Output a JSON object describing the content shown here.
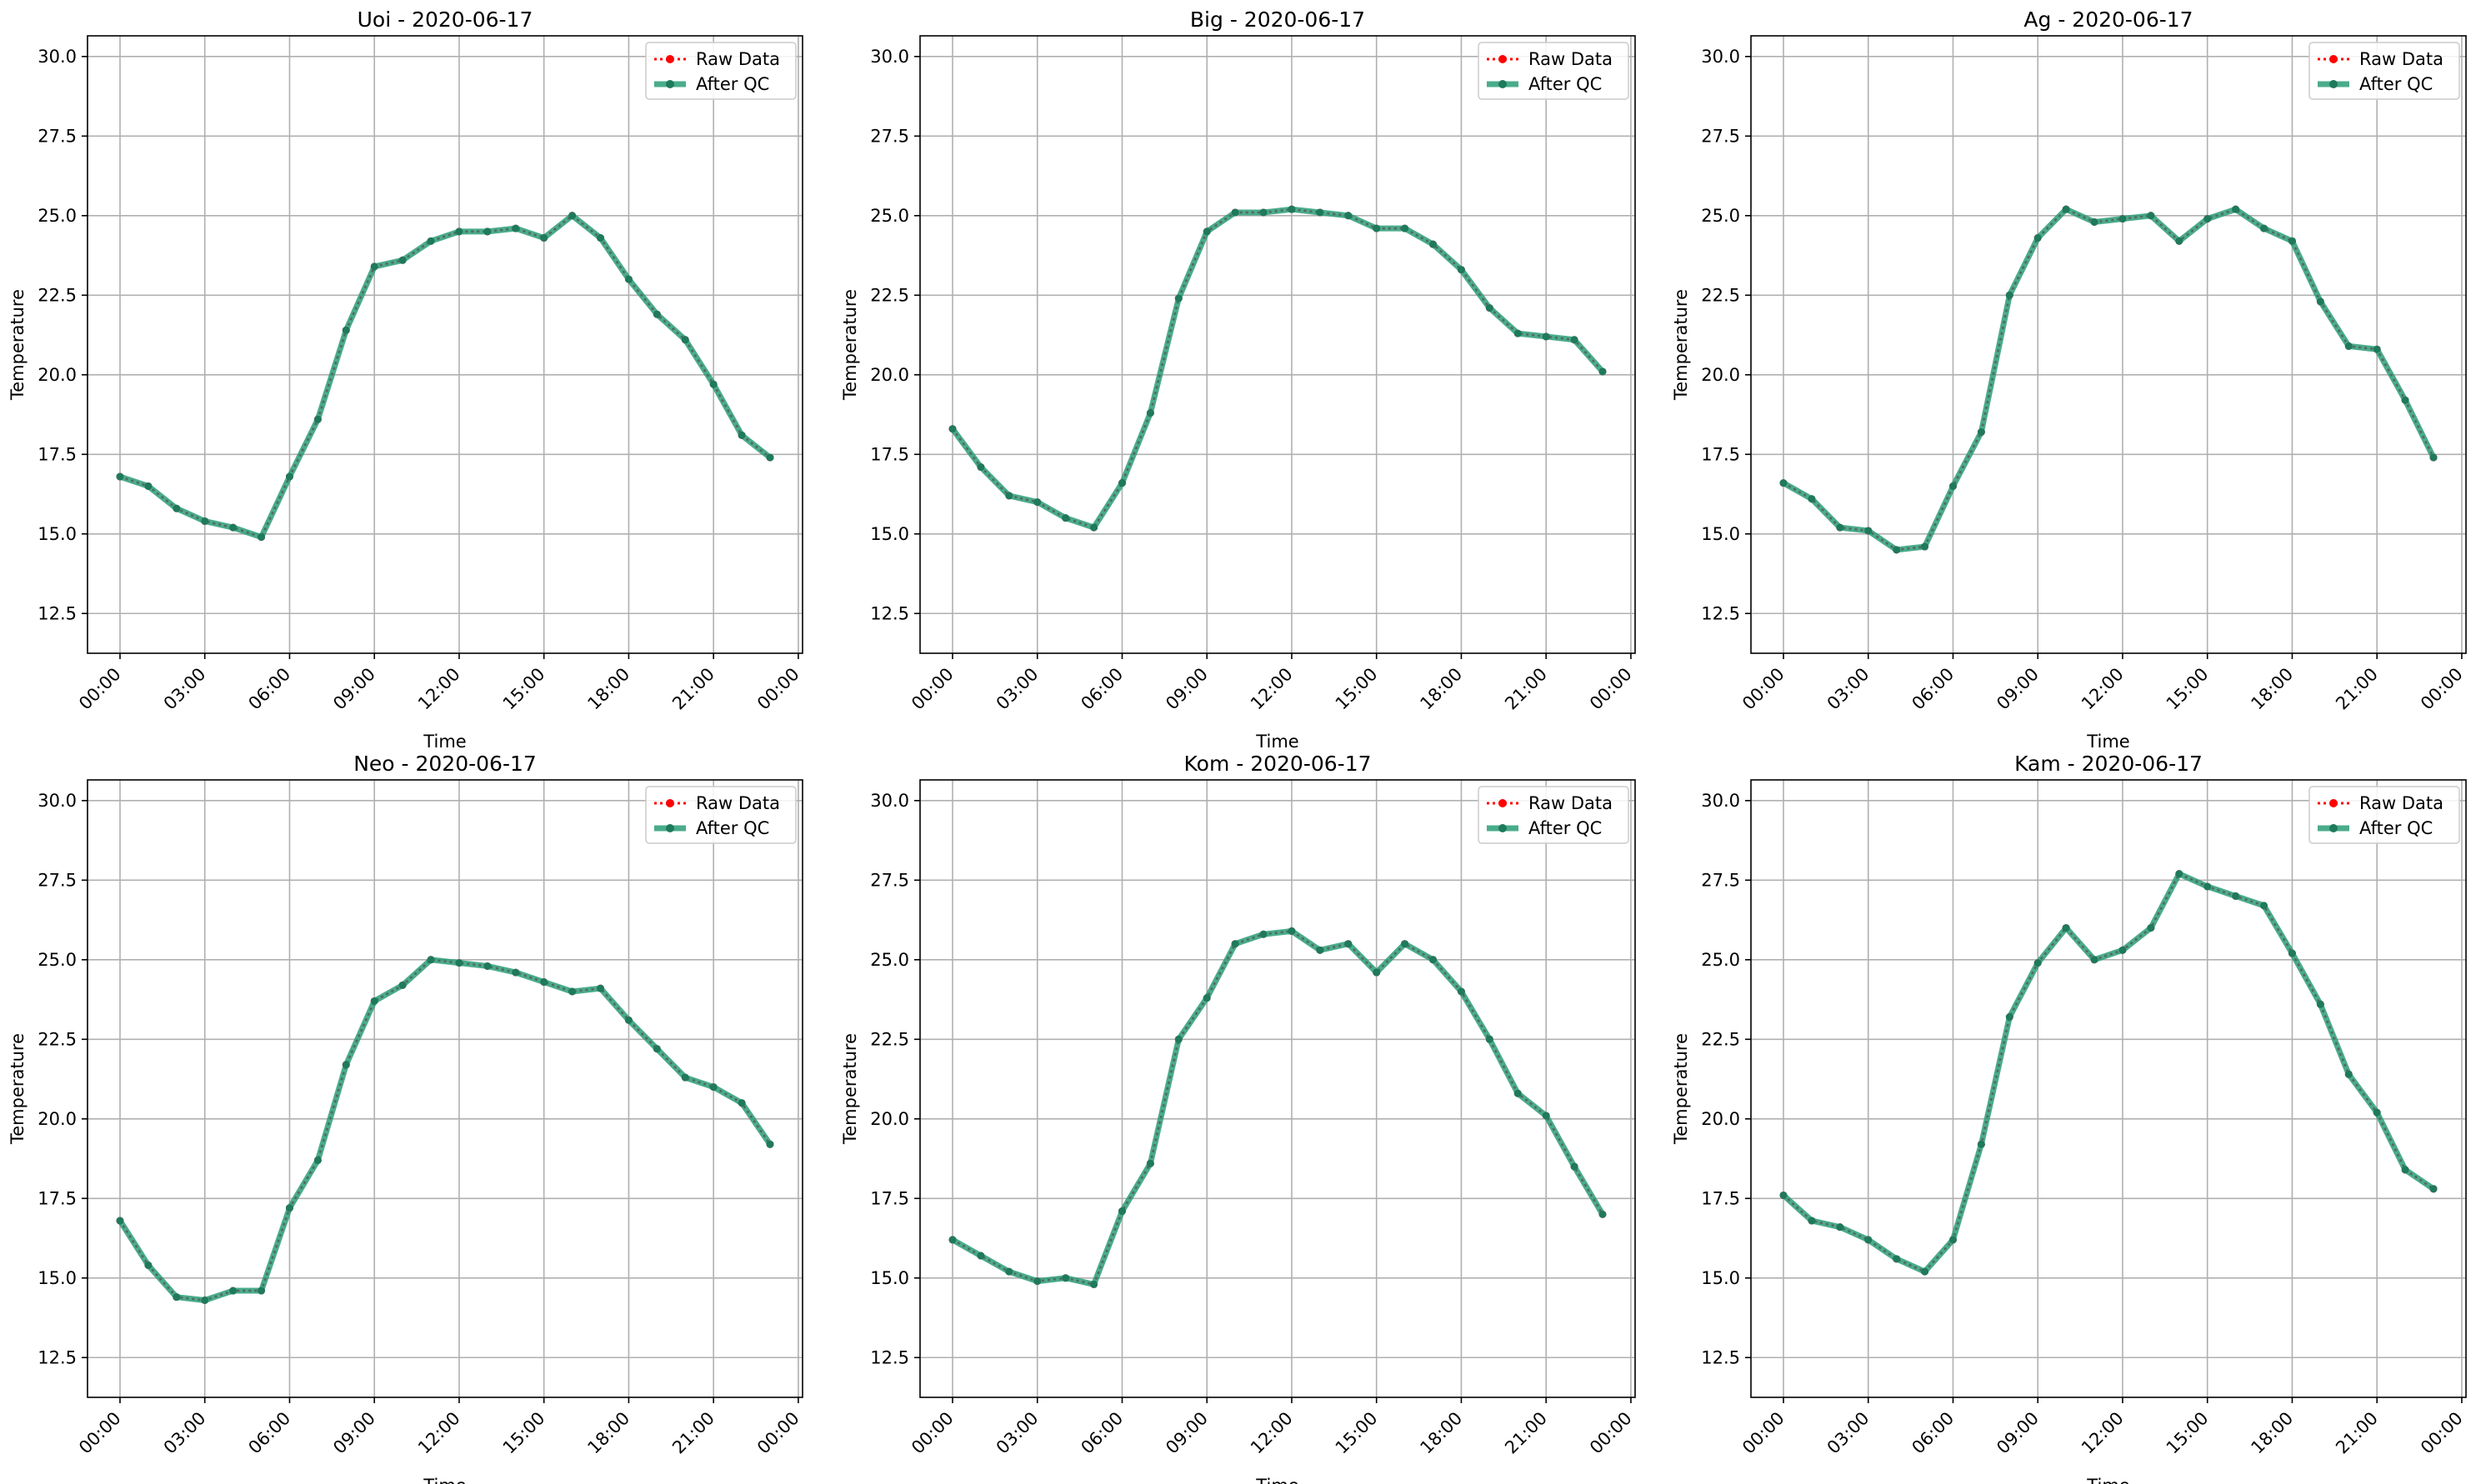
{
  "figure": {
    "background": "#ffffff"
  },
  "style": {
    "raw_color": "#ff0000",
    "qc_color": "#2a9d78",
    "qc_marker_color": "#1f7a5c",
    "grid_color": "#b0b0b0"
  },
  "chart_data": [
    {
      "type": "line",
      "title": "Uoi - 2020-06-17",
      "xlabel": "Time",
      "ylabel": "Temperature",
      "x_unit": "hour",
      "xlim": [
        -1.15,
        24.15
      ],
      "ylim": [
        11.25,
        30.65
      ],
      "xticks": [
        0,
        3,
        6,
        9,
        12,
        15,
        18,
        21,
        24
      ],
      "xtick_labels": [
        "00:00",
        "03:00",
        "06:00",
        "09:00",
        "12:00",
        "15:00",
        "18:00",
        "21:00",
        "00:00"
      ],
      "yticks": [
        12.5,
        15.0,
        17.5,
        20.0,
        22.5,
        25.0,
        27.5,
        30.0
      ],
      "ytick_labels": [
        "12.5",
        "15.0",
        "17.5",
        "20.0",
        "22.5",
        "25.0",
        "27.5",
        "30.0"
      ],
      "grid": true,
      "legend_position": "top-right",
      "x": [
        0,
        1,
        2,
        3,
        4,
        5,
        6,
        7,
        8,
        9,
        10,
        11,
        12,
        13,
        14,
        15,
        16,
        17,
        18,
        19,
        20,
        21,
        22,
        23
      ],
      "series": [
        {
          "name": "Raw Data",
          "values": [
            16.8,
            16.5,
            15.8,
            15.4,
            15.2,
            14.9,
            16.8,
            18.6,
            21.4,
            23.4,
            23.6,
            24.2,
            24.5,
            24.5,
            24.6,
            24.3,
            25.0,
            24.3,
            23.0,
            21.9,
            21.1,
            19.7,
            18.1,
            17.4
          ]
        },
        {
          "name": "After QC",
          "values": [
            16.8,
            16.5,
            15.8,
            15.4,
            15.2,
            14.9,
            16.8,
            18.6,
            21.4,
            23.4,
            23.6,
            24.2,
            24.5,
            24.5,
            24.6,
            24.3,
            25.0,
            24.3,
            23.0,
            21.9,
            21.1,
            19.7,
            18.1,
            17.4
          ]
        }
      ]
    },
    {
      "type": "line",
      "title": "Big - 2020-06-17",
      "xlabel": "Time",
      "ylabel": "Temperature",
      "x_unit": "hour",
      "xlim": [
        -1.15,
        24.15
      ],
      "ylim": [
        11.25,
        30.65
      ],
      "xticks": [
        0,
        3,
        6,
        9,
        12,
        15,
        18,
        21,
        24
      ],
      "xtick_labels": [
        "00:00",
        "03:00",
        "06:00",
        "09:00",
        "12:00",
        "15:00",
        "18:00",
        "21:00",
        "00:00"
      ],
      "yticks": [
        12.5,
        15.0,
        17.5,
        20.0,
        22.5,
        25.0,
        27.5,
        30.0
      ],
      "ytick_labels": [
        "12.5",
        "15.0",
        "17.5",
        "20.0",
        "22.5",
        "25.0",
        "27.5",
        "30.0"
      ],
      "grid": true,
      "legend_position": "top-right",
      "x": [
        0,
        1,
        2,
        3,
        4,
        5,
        6,
        7,
        8,
        9,
        10,
        11,
        12,
        13,
        14,
        15,
        16,
        17,
        18,
        19,
        20,
        21,
        22,
        23
      ],
      "series": [
        {
          "name": "Raw Data",
          "values": [
            18.3,
            17.1,
            16.2,
            16.0,
            15.5,
            15.2,
            16.6,
            18.8,
            22.4,
            24.5,
            25.1,
            25.1,
            25.2,
            25.1,
            25.0,
            24.6,
            24.6,
            24.1,
            23.3,
            22.1,
            21.3,
            21.2,
            21.1,
            20.1
          ]
        },
        {
          "name": "After QC",
          "values": [
            18.3,
            17.1,
            16.2,
            16.0,
            15.5,
            15.2,
            16.6,
            18.8,
            22.4,
            24.5,
            25.1,
            25.1,
            25.2,
            25.1,
            25.0,
            24.6,
            24.6,
            24.1,
            23.3,
            22.1,
            21.3,
            21.2,
            21.1,
            20.1
          ]
        }
      ]
    },
    {
      "type": "line",
      "title": "Ag - 2020-06-17",
      "xlabel": "Time",
      "ylabel": "Temperature",
      "x_unit": "hour",
      "xlim": [
        -1.15,
        24.15
      ],
      "ylim": [
        11.25,
        30.65
      ],
      "xticks": [
        0,
        3,
        6,
        9,
        12,
        15,
        18,
        21,
        24
      ],
      "xtick_labels": [
        "00:00",
        "03:00",
        "06:00",
        "09:00",
        "12:00",
        "15:00",
        "18:00",
        "21:00",
        "00:00"
      ],
      "yticks": [
        12.5,
        15.0,
        17.5,
        20.0,
        22.5,
        25.0,
        27.5,
        30.0
      ],
      "ytick_labels": [
        "12.5",
        "15.0",
        "17.5",
        "20.0",
        "22.5",
        "25.0",
        "27.5",
        "30.0"
      ],
      "grid": true,
      "legend_position": "top-right",
      "x": [
        0,
        1,
        2,
        3,
        4,
        5,
        6,
        7,
        8,
        9,
        10,
        11,
        12,
        13,
        14,
        15,
        16,
        17,
        18,
        19,
        20,
        21,
        22,
        23
      ],
      "series": [
        {
          "name": "Raw Data",
          "values": [
            16.6,
            16.1,
            15.2,
            15.1,
            14.5,
            14.6,
            16.5,
            18.2,
            22.5,
            24.3,
            25.2,
            24.8,
            24.9,
            25.0,
            24.2,
            24.9,
            25.2,
            24.6,
            24.2,
            22.3,
            20.9,
            20.8,
            19.2,
            17.4
          ]
        },
        {
          "name": "After QC",
          "values": [
            16.6,
            16.1,
            15.2,
            15.1,
            14.5,
            14.6,
            16.5,
            18.2,
            22.5,
            24.3,
            25.2,
            24.8,
            24.9,
            25.0,
            24.2,
            24.9,
            25.2,
            24.6,
            24.2,
            22.3,
            20.9,
            20.8,
            19.2,
            17.4
          ]
        }
      ]
    },
    {
      "type": "line",
      "title": "Neo - 2020-06-17",
      "xlabel": "Time",
      "ylabel": "Temperature",
      "x_unit": "hour",
      "xlim": [
        -1.15,
        24.15
      ],
      "ylim": [
        11.25,
        30.65
      ],
      "xticks": [
        0,
        3,
        6,
        9,
        12,
        15,
        18,
        21,
        24
      ],
      "xtick_labels": [
        "00:00",
        "03:00",
        "06:00",
        "09:00",
        "12:00",
        "15:00",
        "18:00",
        "21:00",
        "00:00"
      ],
      "yticks": [
        12.5,
        15.0,
        17.5,
        20.0,
        22.5,
        25.0,
        27.5,
        30.0
      ],
      "ytick_labels": [
        "12.5",
        "15.0",
        "17.5",
        "20.0",
        "22.5",
        "25.0",
        "27.5",
        "30.0"
      ],
      "grid": true,
      "legend_position": "top-right",
      "x": [
        0,
        1,
        2,
        3,
        4,
        5,
        6,
        7,
        8,
        9,
        10,
        11,
        12,
        13,
        14,
        15,
        16,
        17,
        18,
        19,
        20,
        21,
        22,
        23
      ],
      "series": [
        {
          "name": "Raw Data",
          "values": [
            16.8,
            15.4,
            14.4,
            14.3,
            14.6,
            14.6,
            17.2,
            18.7,
            21.7,
            23.7,
            24.2,
            25.0,
            24.9,
            24.8,
            24.6,
            24.3,
            24.0,
            24.1,
            23.1,
            22.2,
            21.3,
            21.0,
            20.5,
            19.2
          ]
        },
        {
          "name": "After QC",
          "values": [
            16.8,
            15.4,
            14.4,
            14.3,
            14.6,
            14.6,
            17.2,
            18.7,
            21.7,
            23.7,
            24.2,
            25.0,
            24.9,
            24.8,
            24.6,
            24.3,
            24.0,
            24.1,
            23.1,
            22.2,
            21.3,
            21.0,
            20.5,
            19.2
          ]
        }
      ]
    },
    {
      "type": "line",
      "title": "Kom - 2020-06-17",
      "xlabel": "Time",
      "ylabel": "Temperature",
      "x_unit": "hour",
      "xlim": [
        -1.15,
        24.15
      ],
      "ylim": [
        11.25,
        30.65
      ],
      "xticks": [
        0,
        3,
        6,
        9,
        12,
        15,
        18,
        21,
        24
      ],
      "xtick_labels": [
        "00:00",
        "03:00",
        "06:00",
        "09:00",
        "12:00",
        "15:00",
        "18:00",
        "21:00",
        "00:00"
      ],
      "yticks": [
        12.5,
        15.0,
        17.5,
        20.0,
        22.5,
        25.0,
        27.5,
        30.0
      ],
      "ytick_labels": [
        "12.5",
        "15.0",
        "17.5",
        "20.0",
        "22.5",
        "25.0",
        "27.5",
        "30.0"
      ],
      "grid": true,
      "legend_position": "top-right",
      "x": [
        0,
        1,
        2,
        3,
        4,
        5,
        6,
        7,
        8,
        9,
        10,
        11,
        12,
        13,
        14,
        15,
        16,
        17,
        18,
        19,
        20,
        21,
        22,
        23
      ],
      "series": [
        {
          "name": "Raw Data",
          "values": [
            16.2,
            15.7,
            15.2,
            14.9,
            15.0,
            14.8,
            17.1,
            18.6,
            22.5,
            23.8,
            25.5,
            25.8,
            25.9,
            25.3,
            25.5,
            24.6,
            25.5,
            25.0,
            24.0,
            22.5,
            20.8,
            20.1,
            18.5,
            17.0
          ]
        },
        {
          "name": "After QC",
          "values": [
            16.2,
            15.7,
            15.2,
            14.9,
            15.0,
            14.8,
            17.1,
            18.6,
            22.5,
            23.8,
            25.5,
            25.8,
            25.9,
            25.3,
            25.5,
            24.6,
            25.5,
            25.0,
            24.0,
            22.5,
            20.8,
            20.1,
            18.5,
            17.0
          ]
        }
      ]
    },
    {
      "type": "line",
      "title": "Kam - 2020-06-17",
      "xlabel": "Time",
      "ylabel": "Temperature",
      "x_unit": "hour",
      "xlim": [
        -1.15,
        24.15
      ],
      "ylim": [
        11.25,
        30.65
      ],
      "xticks": [
        0,
        3,
        6,
        9,
        12,
        15,
        18,
        21,
        24
      ],
      "xtick_labels": [
        "00:00",
        "03:00",
        "06:00",
        "09:00",
        "12:00",
        "15:00",
        "18:00",
        "21:00",
        "00:00"
      ],
      "yticks": [
        12.5,
        15.0,
        17.5,
        20.0,
        22.5,
        25.0,
        27.5,
        30.0
      ],
      "ytick_labels": [
        "12.5",
        "15.0",
        "17.5",
        "20.0",
        "22.5",
        "25.0",
        "27.5",
        "30.0"
      ],
      "grid": true,
      "legend_position": "top-right",
      "x": [
        0,
        1,
        2,
        3,
        4,
        5,
        6,
        7,
        8,
        9,
        10,
        11,
        12,
        13,
        14,
        15,
        16,
        17,
        18,
        19,
        20,
        21,
        22,
        23
      ],
      "series": [
        {
          "name": "Raw Data",
          "values": [
            17.6,
            16.8,
            16.6,
            16.2,
            15.6,
            15.2,
            16.2,
            19.2,
            23.2,
            24.9,
            26.0,
            25.0,
            25.3,
            26.0,
            27.7,
            27.3,
            27.0,
            26.7,
            25.2,
            23.6,
            21.4,
            20.2,
            18.4,
            17.8
          ]
        },
        {
          "name": "After QC",
          "values": [
            17.6,
            16.8,
            16.6,
            16.2,
            15.6,
            15.2,
            16.2,
            19.2,
            23.2,
            24.9,
            26.0,
            25.0,
            25.3,
            26.0,
            27.7,
            27.3,
            27.0,
            26.7,
            25.2,
            23.6,
            21.4,
            20.2,
            18.4,
            17.8
          ]
        }
      ]
    }
  ]
}
